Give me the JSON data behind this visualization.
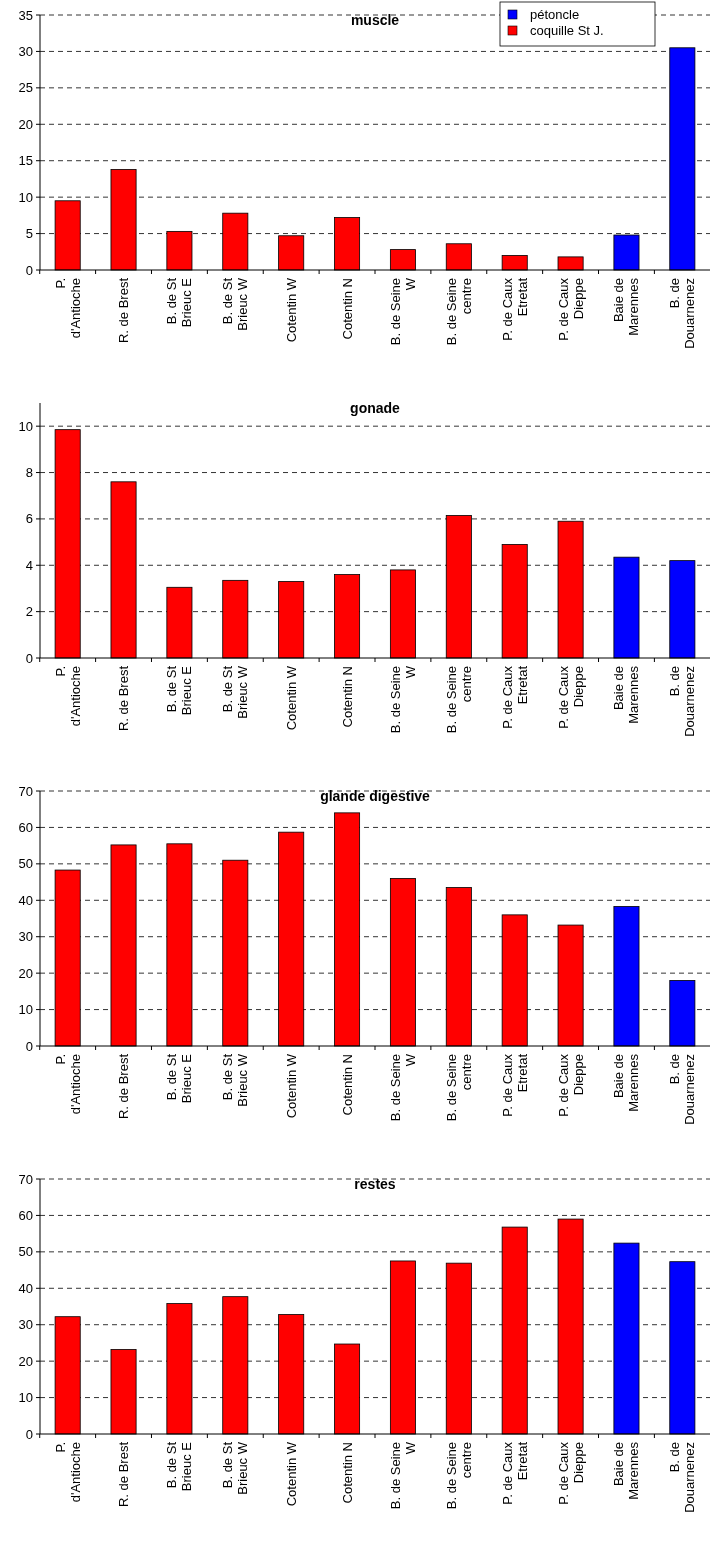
{
  "chart_data": [
    {
      "type": "bar",
      "title": "muscle",
      "stacked": true,
      "legend": "top right",
      "grid": "y",
      "categories": [
        "P. d'Antioche",
        "R. de Brest",
        "B. de St Brieuc E",
        "B. de St Brieuc W",
        "Cotentin W",
        "Cotentin N",
        "B. de Seine W",
        "B. de Seine centre",
        "P. de Caux Etretat",
        "P. de Caux Dieppe",
        "Baie de Marennes",
        "B. de Douarnenez"
      ],
      "ylim": [
        0,
        35
      ],
      "yticks": [
        0,
        5,
        10,
        15,
        20,
        25,
        30,
        35
      ],
      "series": [
        {
          "name": "pétoncle",
          "color": "#0000ff",
          "values": [
            null,
            null,
            null,
            null,
            null,
            null,
            null,
            null,
            null,
            null,
            4.8,
            30.5
          ]
        },
        {
          "name": "coquille St J.",
          "color": "#ff0000",
          "values": [
            9.5,
            13.8,
            5.3,
            7.8,
            4.7,
            7.2,
            2.8,
            3.6,
            2.0,
            1.8,
            null,
            null
          ]
        }
      ]
    },
    {
      "type": "bar",
      "title": "gonade",
      "stacked": true,
      "grid": "y",
      "categories": [
        "P. d'Antioche",
        "R. de Brest",
        "B. de St Brieuc E",
        "B. de St Brieuc W",
        "Cotentin W",
        "Cotentin N",
        "B. de Seine W",
        "B. de Seine centre",
        "P. de Caux Etretat",
        "P. de Caux Dieppe",
        "Baie de Marennes",
        "B. de Douarnenez"
      ],
      "ylim": [
        0,
        11
      ],
      "yticks": [
        0,
        2,
        4,
        6,
        8,
        10
      ],
      "series": [
        {
          "color": "#0000ff",
          "values": [
            null,
            null,
            null,
            null,
            null,
            null,
            null,
            null,
            null,
            null,
            4.35,
            4.2
          ]
        },
        {
          "color": "#ff0000",
          "values": [
            9.85,
            7.6,
            3.05,
            3.35,
            3.3,
            3.6,
            3.8,
            6.15,
            4.9,
            5.9,
            null,
            null
          ]
        }
      ]
    },
    {
      "type": "bar",
      "title": "glande digestive",
      "stacked": true,
      "grid": "y",
      "categories": [
        "P. d'Antioche",
        "R. de Brest",
        "B. de St Brieuc E",
        "B. de St Brieuc W",
        "Cotentin W",
        "Cotentin N",
        "B. de Seine W",
        "B. de Seine centre",
        "P. de Caux Etretat",
        "P. de Caux Dieppe",
        "Baie de Marennes",
        "B. de Douarnenez"
      ],
      "ylim": [
        0,
        70
      ],
      "yticks": [
        0,
        10,
        20,
        30,
        40,
        50,
        60,
        70
      ],
      "series": [
        {
          "color": "#0000ff",
          "values": [
            null,
            null,
            null,
            null,
            null,
            null,
            null,
            null,
            null,
            null,
            38.3,
            18
          ]
        },
        {
          "color": "#ff0000",
          "values": [
            48.3,
            55.2,
            55.5,
            51,
            58.7,
            64,
            46,
            43.5,
            36,
            33.2,
            null,
            null
          ]
        }
      ]
    },
    {
      "type": "bar",
      "title": "restes",
      "stacked": true,
      "grid": "y",
      "categories": [
        "P. d'Antioche",
        "R. de Brest",
        "B. de St Brieuc E",
        "B. de St Brieuc W",
        "Cotentin W",
        "Cotentin N",
        "B. de Seine W",
        "B. de Seine centre",
        "P. de Caux Etretat",
        "P. de Caux Dieppe",
        "Baie de Marennes",
        "B. de Douarnenez"
      ],
      "ylim": [
        0,
        70
      ],
      "yticks": [
        0,
        10,
        20,
        30,
        40,
        50,
        60,
        70
      ],
      "series": [
        {
          "color": "#0000ff",
          "values": [
            null,
            null,
            null,
            null,
            null,
            null,
            null,
            null,
            null,
            null,
            52.4,
            47.3
          ]
        },
        {
          "color": "#ff0000",
          "values": [
            32.2,
            23.2,
            35.8,
            37.7,
            32.8,
            24.7,
            47.5,
            46.9,
            56.8,
            59,
            null,
            null
          ]
        }
      ]
    }
  ]
}
